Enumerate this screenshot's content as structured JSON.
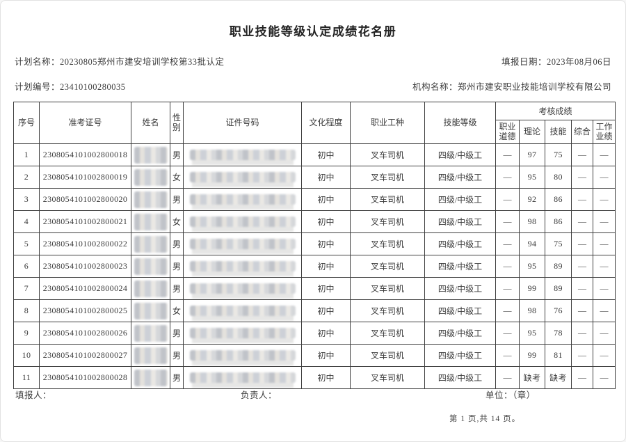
{
  "page": {
    "title": "职业技能等级认定成绩花名册"
  },
  "meta": {
    "plan_name": {
      "label": "计划名称：",
      "value": "20230805郑州市建安培训学校第33批认定"
    },
    "report_date": {
      "label": "填报日期：",
      "value": "2023年08月06日"
    },
    "plan_number": {
      "label": "计划编号：",
      "value": "23410100280035"
    },
    "org_name": {
      "label": "机构名称：",
      "value": "郑州市建安职业技能培训学校有限公司"
    }
  },
  "table": {
    "headers": {
      "seq": "序号",
      "exam_no": "准考证号",
      "name": "姓名",
      "gender": "性别",
      "id_no": "证件号码",
      "education": "文化程度",
      "occupation": "职业工种",
      "skill_level": "技能等级",
      "score_group": "考核成绩",
      "score_ethics": "职业道德",
      "score_theory": "理论",
      "score_skill": "技能",
      "score_comprehensive": "综合",
      "score_work": "工作业绩"
    },
    "rows": [
      {
        "seq": "1",
        "exam_no": "2308054101002800018",
        "name_redacted": true,
        "gender": "男",
        "id_redacted": true,
        "education": "初中",
        "occupation": "叉车司机",
        "skill_level": "四级/中级工",
        "ethics": "—",
        "theory": "97",
        "skill": "75",
        "comprehensive": "—",
        "work": "—"
      },
      {
        "seq": "2",
        "exam_no": "2308054101002800019",
        "name_redacted": true,
        "gender": "女",
        "id_redacted": true,
        "education": "初中",
        "occupation": "叉车司机",
        "skill_level": "四级/中级工",
        "ethics": "—",
        "theory": "95",
        "skill": "80",
        "comprehensive": "—",
        "work": "—"
      },
      {
        "seq": "3",
        "exam_no": "2308054101002800020",
        "name_redacted": true,
        "gender": "男",
        "id_redacted": true,
        "education": "初中",
        "occupation": "叉车司机",
        "skill_level": "四级/中级工",
        "ethics": "—",
        "theory": "92",
        "skill": "86",
        "comprehensive": "—",
        "work": "—"
      },
      {
        "seq": "4",
        "exam_no": "2308054101002800021",
        "name_redacted": true,
        "gender": "女",
        "id_redacted": true,
        "education": "初中",
        "occupation": "叉车司机",
        "skill_level": "四级/中级工",
        "ethics": "—",
        "theory": "98",
        "skill": "86",
        "comprehensive": "—",
        "work": "—"
      },
      {
        "seq": "5",
        "exam_no": "2308054101002800022",
        "name_redacted": true,
        "gender": "男",
        "id_redacted": true,
        "education": "初中",
        "occupation": "叉车司机",
        "skill_level": "四级/中级工",
        "ethics": "—",
        "theory": "94",
        "skill": "75",
        "comprehensive": "—",
        "work": "—"
      },
      {
        "seq": "6",
        "exam_no": "2308054101002800023",
        "name_redacted": true,
        "gender": "男",
        "id_redacted": true,
        "education": "初中",
        "occupation": "叉车司机",
        "skill_level": "四级/中级工",
        "ethics": "—",
        "theory": "95",
        "skill": "89",
        "comprehensive": "—",
        "work": "—"
      },
      {
        "seq": "7",
        "exam_no": "2308054101002800024",
        "name_redacted": true,
        "gender": "男",
        "id_redacted": true,
        "education": "初中",
        "occupation": "叉车司机",
        "skill_level": "四级/中级工",
        "ethics": "—",
        "theory": "99",
        "skill": "89",
        "comprehensive": "—",
        "work": "—"
      },
      {
        "seq": "8",
        "exam_no": "2308054101002800025",
        "name_redacted": true,
        "gender": "女",
        "id_redacted": true,
        "education": "初中",
        "occupation": "叉车司机",
        "skill_level": "四级/中级工",
        "ethics": "—",
        "theory": "98",
        "skill": "76",
        "comprehensive": "—",
        "work": "—"
      },
      {
        "seq": "9",
        "exam_no": "2308054101002800026",
        "name_redacted": true,
        "gender": "男",
        "id_redacted": true,
        "education": "初中",
        "occupation": "叉车司机",
        "skill_level": "四级/中级工",
        "ethics": "—",
        "theory": "95",
        "skill": "78",
        "comprehensive": "—",
        "work": "—"
      },
      {
        "seq": "10",
        "exam_no": "2308054101002800027",
        "name_redacted": true,
        "gender": "男",
        "id_redacted": true,
        "education": "初中",
        "occupation": "叉车司机",
        "skill_level": "四级/中级工",
        "ethics": "—",
        "theory": "99",
        "skill": "81",
        "comprehensive": "—",
        "work": "—"
      },
      {
        "seq": "11",
        "exam_no": "2308054101002800028",
        "name_redacted": true,
        "gender": "男",
        "id_redacted": true,
        "education": "初中",
        "occupation": "叉车司机",
        "skill_level": "四级/中级工",
        "ethics": "—",
        "theory": "缺考",
        "skill": "缺考",
        "comprehensive": "—",
        "work": "—"
      }
    ]
  },
  "footer": {
    "filler_label": "填报人：",
    "responsible_label": "负责人：",
    "unit_label": "单位：（章）",
    "page_info": "第 1 页,共 14 页。"
  }
}
